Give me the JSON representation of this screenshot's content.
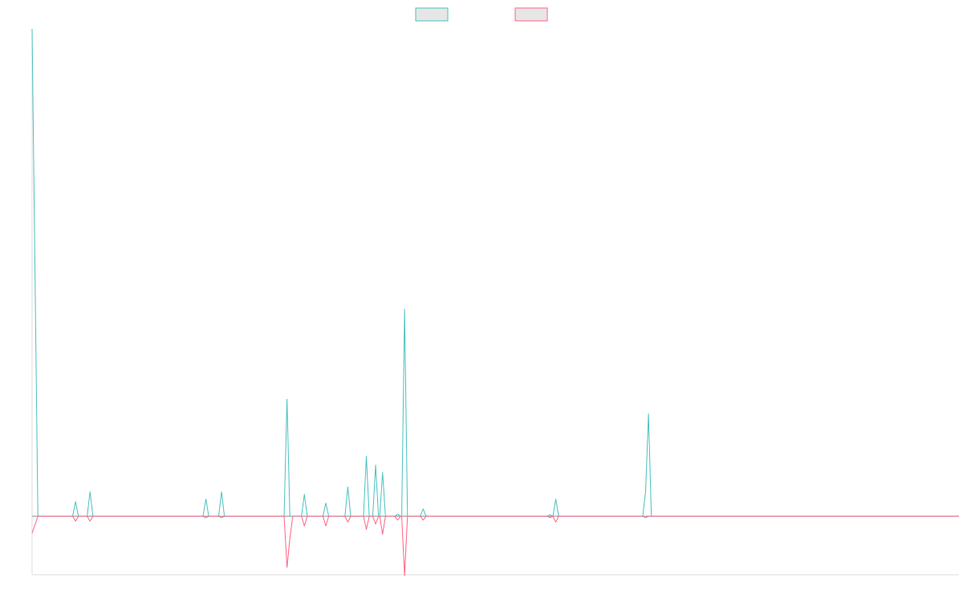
{
  "chart_data": {
    "type": "line",
    "title": "",
    "xlabel": "",
    "ylabel": "",
    "legend": {
      "placement": "top-center",
      "entries": [
        "",
        ""
      ]
    },
    "grid": false,
    "x_range": [
      0,
      160
    ],
    "ylim": [
      -12,
      100
    ],
    "colors": {
      "series_a": "#4bc0c0",
      "series_b": "#ff6384",
      "zero_line": "#8a8a8a",
      "axis": "#dddddd",
      "legend_fill": "#e6e6e6"
    },
    "series": [
      {
        "color": "#4bc0c0",
        "points": [
          [
            0,
            100
          ],
          [
            1,
            0
          ],
          [
            7,
            0
          ],
          [
            7.5,
            3
          ],
          [
            8,
            0
          ],
          [
            9.5,
            0
          ],
          [
            10,
            5
          ],
          [
            10.5,
            0
          ],
          [
            29.5,
            0
          ],
          [
            30,
            3.5
          ],
          [
            30.5,
            0
          ],
          [
            32.2,
            0
          ],
          [
            32.7,
            5
          ],
          [
            33.2,
            0
          ],
          [
            43.5,
            0
          ],
          [
            44,
            24
          ],
          [
            44.5,
            0
          ],
          [
            46.5,
            0
          ],
          [
            47,
            4.5
          ],
          [
            47.5,
            0
          ],
          [
            50.2,
            0
          ],
          [
            50.7,
            2.7
          ],
          [
            51.2,
            0
          ],
          [
            54,
            0
          ],
          [
            54.5,
            6
          ],
          [
            55,
            0
          ],
          [
            57.2,
            0
          ],
          [
            57.7,
            12.3
          ],
          [
            58.2,
            0
          ],
          [
            58.8,
            0
          ],
          [
            59.3,
            10.5
          ],
          [
            59.8,
            0
          ],
          [
            60,
            0
          ],
          [
            60.5,
            9
          ],
          [
            61,
            0
          ],
          [
            62.6,
            0
          ],
          [
            63.1,
            0.4
          ],
          [
            63.6,
            0
          ],
          [
            63.8,
            0
          ],
          [
            64.3,
            42.5
          ],
          [
            64.8,
            0
          ],
          [
            67,
            0
          ],
          [
            67.5,
            1.5
          ],
          [
            68,
            0
          ],
          [
            88.9,
            0
          ],
          [
            89.4,
            0.3
          ],
          [
            89.9,
            0
          ],
          [
            89.9,
            0
          ],
          [
            90.4,
            3.5
          ],
          [
            90.9,
            0
          ],
          [
            105.4,
            0
          ],
          [
            105.9,
            5
          ],
          [
            106.4,
            21
          ],
          [
            106.9,
            0
          ],
          [
            160,
            0
          ]
        ]
      },
      {
        "color": "#ff6384",
        "points": [
          [
            0,
            -3.5
          ],
          [
            1,
            0
          ],
          [
            7,
            0
          ],
          [
            7.5,
            -1
          ],
          [
            8,
            0
          ],
          [
            9.5,
            0
          ],
          [
            10,
            -1
          ],
          [
            10.5,
            0
          ],
          [
            29.5,
            0
          ],
          [
            30,
            -0.3
          ],
          [
            30.5,
            0
          ],
          [
            32.2,
            0
          ],
          [
            32.7,
            -0.3
          ],
          [
            33.2,
            0
          ],
          [
            43.5,
            0
          ],
          [
            44,
            -10.5
          ],
          [
            44.5,
            -4.5
          ],
          [
            45,
            0
          ],
          [
            46.5,
            0
          ],
          [
            47,
            -2
          ],
          [
            47.5,
            0
          ],
          [
            50.2,
            0
          ],
          [
            50.7,
            -2
          ],
          [
            51.2,
            0
          ],
          [
            54,
            0
          ],
          [
            54.5,
            -1.2
          ],
          [
            55,
            0
          ],
          [
            57.2,
            0
          ],
          [
            57.7,
            -2.7
          ],
          [
            58.2,
            0
          ],
          [
            58.8,
            0
          ],
          [
            59.3,
            -1.6
          ],
          [
            59.8,
            0
          ],
          [
            60,
            0
          ],
          [
            60.5,
            -3.7
          ],
          [
            61,
            0
          ],
          [
            62.6,
            0
          ],
          [
            63.1,
            -0.8
          ],
          [
            63.6,
            0
          ],
          [
            63.8,
            0
          ],
          [
            64.3,
            -12.2
          ],
          [
            64.8,
            0
          ],
          [
            67,
            0
          ],
          [
            67.5,
            -0.8
          ],
          [
            68,
            0
          ],
          [
            88.9,
            0
          ],
          [
            89.4,
            -0.3
          ],
          [
            89.9,
            0
          ],
          [
            89.9,
            0
          ],
          [
            90.4,
            -1.2
          ],
          [
            90.9,
            0
          ],
          [
            105.4,
            0
          ],
          [
            105.9,
            -0.3
          ],
          [
            106.4,
            0
          ],
          [
            160,
            0
          ]
        ]
      }
    ]
  }
}
